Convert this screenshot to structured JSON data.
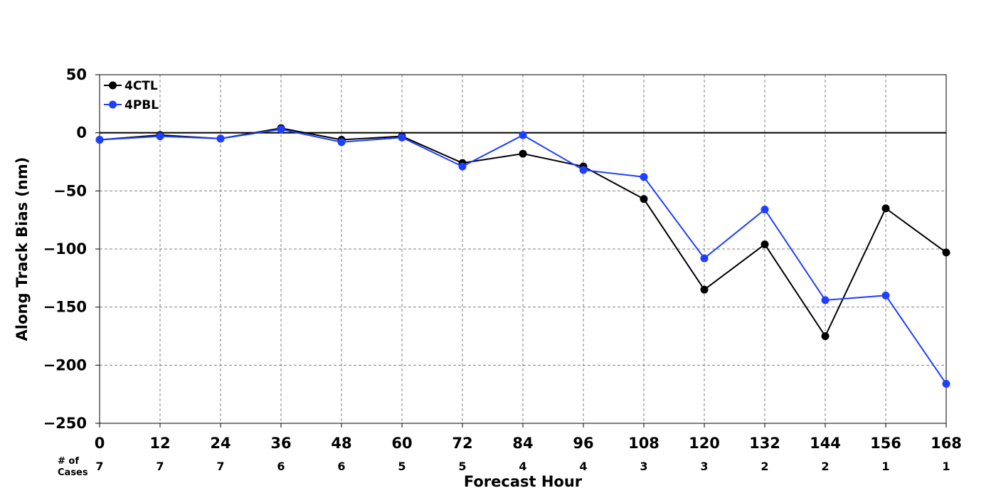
{
  "chart_data": {
    "type": "line",
    "title": "",
    "xlabel": "Forecast Hour",
    "ylabel": "Along Track Bias (nm)",
    "x": [
      0,
      12,
      24,
      36,
      48,
      60,
      72,
      84,
      96,
      108,
      120,
      132,
      144,
      156,
      168
    ],
    "x_tick_labels": [
      "0",
      "12",
      "24",
      "36",
      "48",
      "60",
      "72",
      "84",
      "96",
      "108",
      "120",
      "132",
      "144",
      "156",
      "168"
    ],
    "xlim": [
      0,
      168
    ],
    "ylim": [
      -250,
      50
    ],
    "y_ticks": [
      50,
      0,
      -50,
      -100,
      -150,
      -200,
      -250
    ],
    "y_tick_labels": [
      "50",
      "0",
      "−50",
      "−100",
      "−150",
      "−200",
      "−250"
    ],
    "grid": true,
    "zero_line": true,
    "legend_position": "top-left",
    "series": [
      {
        "name": "4CTL",
        "color": "#000000",
        "values": [
          -6,
          -2,
          -5,
          4,
          -6,
          -3,
          -26,
          -18,
          -29,
          -57,
          -135,
          -96,
          -175,
          -65,
          -103
        ]
      },
      {
        "name": "4PBL",
        "color": "#1f3fff",
        "values": [
          -6,
          -3,
          -5,
          3,
          -8,
          -4,
          -29,
          -2,
          -32,
          -38,
          -108,
          -66,
          -144,
          -140,
          -216
        ]
      }
    ],
    "cases": {
      "label_line1": "# of",
      "label_line2": "Cases",
      "values": [
        "7",
        "7",
        "7",
        "6",
        "6",
        "5",
        "5",
        "4",
        "4",
        "3",
        "3",
        "2",
        "2",
        "1",
        "1"
      ]
    }
  }
}
